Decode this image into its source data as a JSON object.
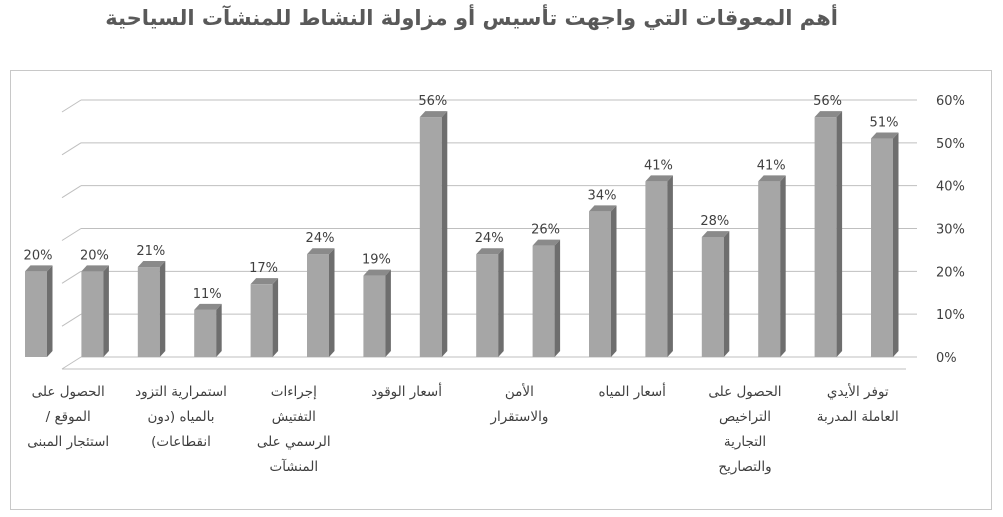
{
  "chart_data": {
    "type": "bar",
    "title": "أهم المعوقات التي واجهت تأسيس أو مزاولة النشاط للمنشآت السياحية",
    "ylim": [
      0,
      60
    ],
    "yticks": [
      "0%",
      "10%",
      "20%",
      "30%",
      "40%",
      "50%",
      "60%"
    ],
    "grid": true,
    "legend": "none",
    "categories": [
      "توفر الأيدي العاملة المدربة",
      "",
      "الحصول على التراخيص التجارية والتصاريح",
      "",
      "أسعار المياه",
      "",
      "الأمن والاستقرار",
      "",
      "أسعار الوقود",
      "",
      "إجراءات التفتيش الرسمي على المنشآت",
      "",
      "استمرارية التزود بالمياه (دون انقطاعات)",
      "",
      "الحصول على الموقع / استئجار المبنى",
      ""
    ],
    "category_lines": [
      [
        "توفر الأيدي",
        "العاملة المدربة"
      ],
      [],
      [
        "الحصول على",
        "التراخيص",
        "التجارية",
        "والتصاريح"
      ],
      [],
      [
        "أسعار المياه"
      ],
      [],
      [
        "الأمن",
        "والاستقرار"
      ],
      [],
      [
        "أسعار الوقود"
      ],
      [],
      [
        "إجراءات",
        "التفتيش",
        "الرسمي على",
        "المنشآت"
      ],
      [],
      [
        "استمرارية التزود",
        "بالمياه (دون",
        "انقطاعات)"
      ],
      [],
      [
        "الحصول على",
        "الموقع /",
        "استئجار المبنى"
      ],
      []
    ],
    "values": [
      51,
      56,
      41,
      28,
      41,
      34,
      26,
      24,
      56,
      19,
      24,
      17,
      11,
      21,
      20,
      20
    ],
    "data_labels": [
      "51%",
      "56%",
      "41%",
      "28%",
      "41%",
      "34%",
      "26%",
      "24%",
      "56%",
      "19%",
      "24%",
      "17%",
      "11%",
      "21%",
      "20%",
      "20%"
    ],
    "colors": {
      "bar_front": "#a6a6a6",
      "bar_side": "#6e6e6e",
      "bar_top": "#8a8a8a",
      "grid": "#bfbfbf",
      "text": "#404040"
    }
  }
}
